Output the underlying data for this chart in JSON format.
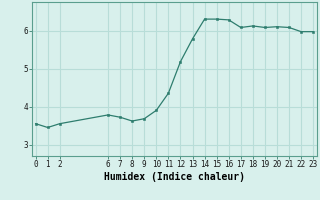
{
  "x": [
    0,
    1,
    2,
    6,
    7,
    8,
    9,
    10,
    11,
    12,
    13,
    14,
    15,
    16,
    17,
    18,
    19,
    20,
    21,
    22,
    23
  ],
  "y": [
    3.55,
    3.45,
    3.55,
    3.78,
    3.72,
    3.62,
    3.68,
    3.9,
    4.35,
    5.18,
    5.78,
    6.3,
    6.3,
    6.28,
    6.08,
    6.12,
    6.08,
    6.1,
    6.08,
    5.97,
    5.97
  ],
  "line_color": "#2e7d6e",
  "marker_color": "#2e7d6e",
  "bg_color": "#d8f0ec",
  "grid_color": "#b8ddd8",
  "xlabel": "Humidex (Indice chaleur)",
  "xlabel_fontsize": 7,
  "xticks": [
    0,
    1,
    2,
    6,
    7,
    8,
    9,
    10,
    11,
    12,
    13,
    14,
    15,
    16,
    17,
    18,
    19,
    20,
    21,
    22,
    23
  ],
  "yticks": [
    3,
    4,
    5,
    6
  ],
  "ylim": [
    2.7,
    6.75
  ],
  "xlim": [
    -0.3,
    23.3
  ],
  "tick_fontsize": 5.5
}
